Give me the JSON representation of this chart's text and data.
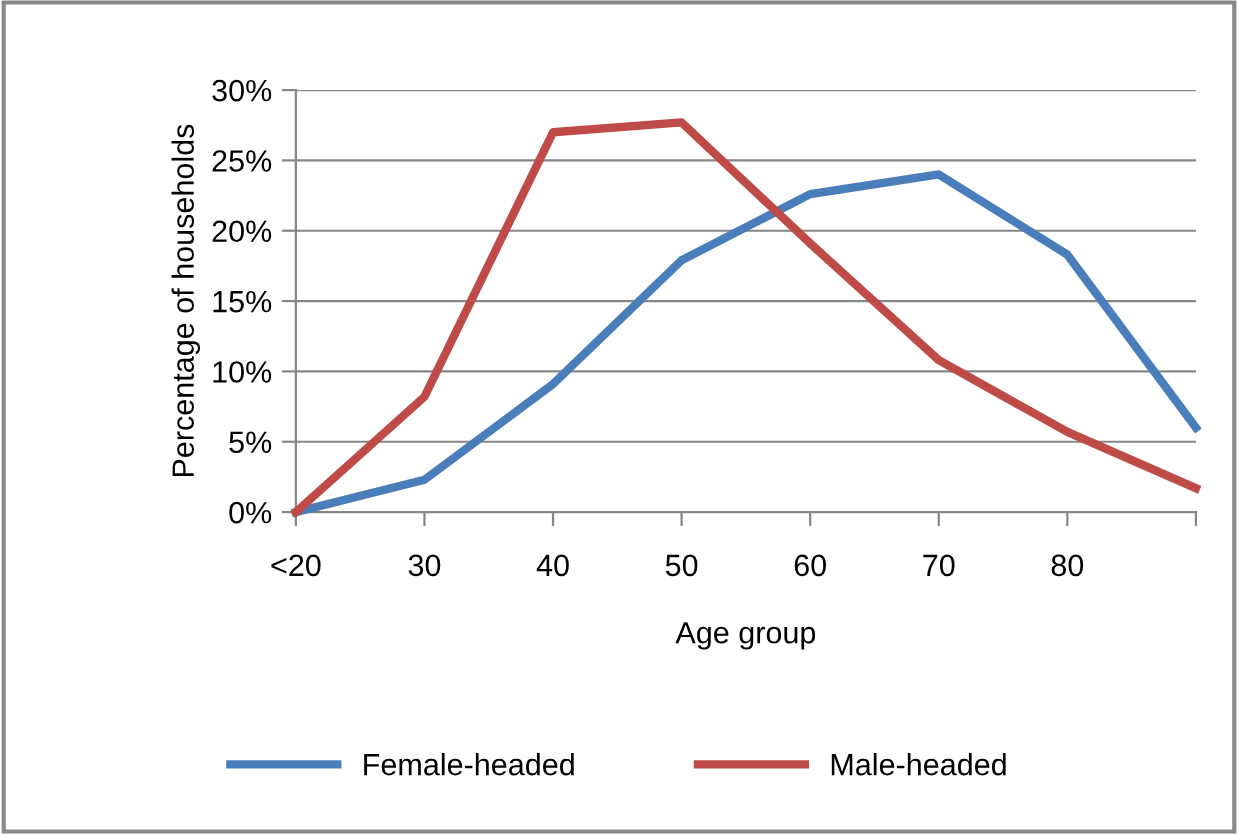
{
  "chart_data": {
    "type": "line",
    "xlabel": "Age group",
    "ylabel": "Percentage of households",
    "categories": [
      "<20",
      "30",
      "40",
      "50",
      "60",
      "70",
      "80",
      null
    ],
    "series": [
      {
        "name": "Female-headed",
        "color": "#4a7ebb",
        "values": [
          0,
          2.3,
          9.1,
          17.9,
          22.6,
          24.0,
          18.3,
          6.0
        ]
      },
      {
        "name": "Male-headed",
        "color": "#be4b48",
        "values": [
          0,
          8.2,
          27.0,
          27.7,
          19.1,
          10.8,
          5.7,
          1.7
        ]
      }
    ],
    "ylim": [
      0,
      30
    ],
    "yticks": [
      {
        "value": 0,
        "label": "0%"
      },
      {
        "value": 5,
        "label": "5%"
      },
      {
        "value": 10,
        "label": "10%"
      },
      {
        "value": 15,
        "label": "15%"
      },
      {
        "value": 20,
        "label": "20%"
      },
      {
        "value": 25,
        "label": "25%"
      },
      {
        "value": 30,
        "label": "30%"
      }
    ],
    "grid": "y",
    "legend": "bottom",
    "marker": "none",
    "line_style": "solid"
  }
}
